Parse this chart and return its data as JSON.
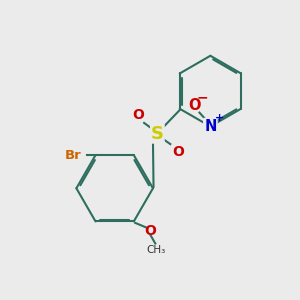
{
  "background_color": "#ebebeb",
  "bond_color": "#2d6e5e",
  "bond_width": 1.5,
  "dbo": 0.08,
  "figsize": [
    3.0,
    3.0
  ],
  "dpi": 100,
  "xlim": [
    0,
    10
  ],
  "ylim": [
    0,
    10
  ]
}
